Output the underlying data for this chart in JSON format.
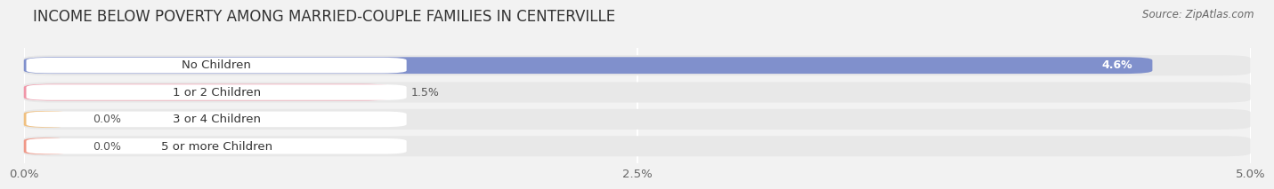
{
  "title": "INCOME BELOW POVERTY AMONG MARRIED-COUPLE FAMILIES IN CENTERVILLE",
  "source": "Source: ZipAtlas.com",
  "categories": [
    "No Children",
    "1 or 2 Children",
    "3 or 4 Children",
    "5 or more Children"
  ],
  "values": [
    4.6,
    1.5,
    0.0,
    0.0
  ],
  "bar_colors": [
    "#8090cc",
    "#f096a8",
    "#f0c080",
    "#f09888"
  ],
  "xlim": [
    0,
    5.0
  ],
  "xticks": [
    0.0,
    2.5,
    5.0
  ],
  "xtick_labels": [
    "0.0%",
    "2.5%",
    "5.0%"
  ],
  "bar_height": 0.62,
  "row_bg_colors": [
    "#eaeaea",
    "#eaeaea",
    "#eaeaea",
    "#eaeaea"
  ],
  "background_color": "#f2f2f2",
  "title_fontsize": 12,
  "label_fontsize": 9.5,
  "value_fontsize": 9,
  "source_fontsize": 8.5,
  "value_color_inside": "#ffffff",
  "value_color_outside": "#555555",
  "label_pill_color": "#ffffff"
}
